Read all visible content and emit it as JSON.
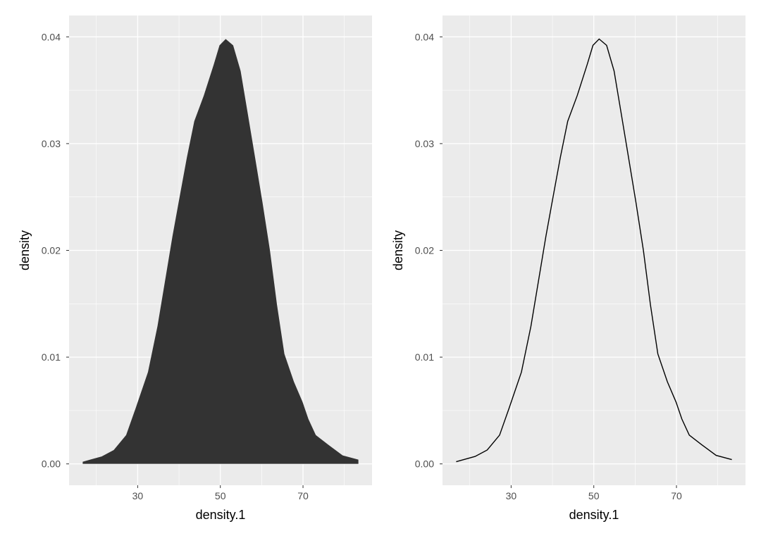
{
  "chart_data": [
    {
      "type": "area",
      "xlabel": "density.1",
      "ylabel": "density",
      "xticks": [
        30,
        50,
        70
      ],
      "yticks": [
        "0.00",
        "0.01",
        "0.02",
        "0.03",
        "0.04"
      ],
      "xlim": [
        13.4,
        86.7
      ],
      "ylim": [
        -0.002,
        0.042
      ],
      "grid": true,
      "fill": "#333333",
      "background": "#EBEBEB",
      "x": [
        16.7,
        21.3,
        24.2,
        27.2,
        29.5,
        32.5,
        34.8,
        36.6,
        38.4,
        40.1,
        41.9,
        43.7,
        46.0,
        48.4,
        49.8,
        51.3,
        53.1,
        54.9,
        56.6,
        58.4,
        60.2,
        62.0,
        63.7,
        65.5,
        67.8,
        69.9,
        71.3,
        73.1,
        76.1,
        79.6,
        83.4
      ],
      "y": [
        0.0002,
        0.0007,
        0.0013,
        0.0027,
        0.0052,
        0.0086,
        0.0129,
        0.0171,
        0.0213,
        0.0249,
        0.0287,
        0.0321,
        0.0345,
        0.0374,
        0.0392,
        0.0398,
        0.0392,
        0.0368,
        0.0329,
        0.0287,
        0.0245,
        0.02,
        0.0149,
        0.0103,
        0.0077,
        0.0058,
        0.0042,
        0.0027,
        0.0018,
        0.0008,
        0.0004
      ]
    },
    {
      "type": "line",
      "xlabel": "density.1",
      "ylabel": "density",
      "xticks": [
        30,
        50,
        70
      ],
      "yticks": [
        "0.00",
        "0.01",
        "0.02",
        "0.03",
        "0.04"
      ],
      "xlim": [
        13.4,
        86.7
      ],
      "ylim": [
        -0.002,
        0.042
      ],
      "grid": true,
      "line_color": "#000000",
      "background": "#EBEBEB",
      "x": [
        16.7,
        21.3,
        24.2,
        27.2,
        29.5,
        32.5,
        34.8,
        36.6,
        38.4,
        40.1,
        41.9,
        43.7,
        46.0,
        48.4,
        49.8,
        51.3,
        53.1,
        54.9,
        56.6,
        58.4,
        60.2,
        62.0,
        63.7,
        65.5,
        67.8,
        69.9,
        71.3,
        73.1,
        76.1,
        79.6,
        83.4
      ],
      "y": [
        0.0002,
        0.0007,
        0.0013,
        0.0027,
        0.0052,
        0.0086,
        0.0129,
        0.0171,
        0.0213,
        0.0249,
        0.0287,
        0.0321,
        0.0345,
        0.0374,
        0.0392,
        0.0398,
        0.0392,
        0.0368,
        0.0329,
        0.0287,
        0.0245,
        0.02,
        0.0149,
        0.0103,
        0.0077,
        0.0058,
        0.0042,
        0.0027,
        0.0018,
        0.0008,
        0.0004
      ]
    }
  ]
}
